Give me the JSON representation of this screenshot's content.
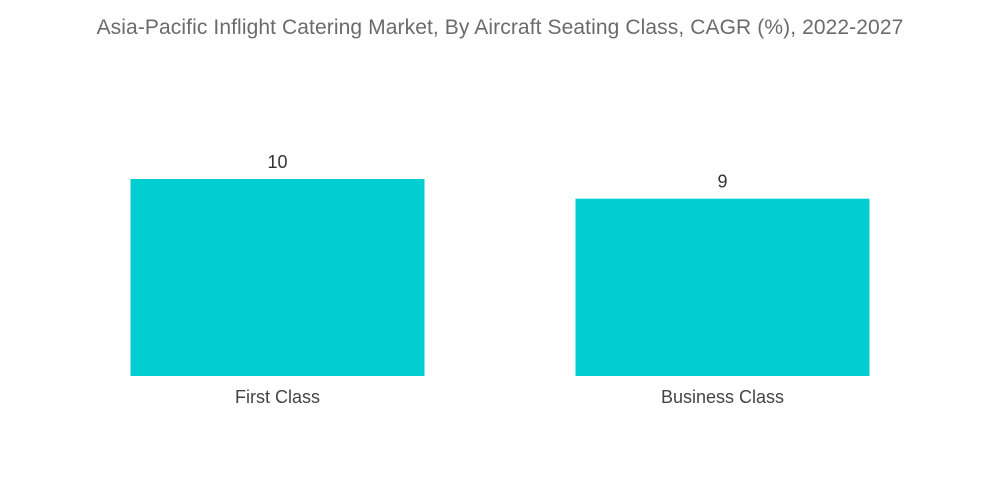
{
  "chart_data": {
    "type": "bar",
    "title": "Asia-Pacific Inflight Catering Market, By Aircraft Seating Class, CAGR (%), 2022-2027",
    "categories": [
      "First Class",
      "Business Class"
    ],
    "values": [
      10,
      9
    ],
    "data_labels": [
      "10",
      "9"
    ],
    "xlabel": "",
    "ylabel": "",
    "ylim": [
      0,
      10
    ],
    "grid": false,
    "legend": "none",
    "bar_color": "#00CED1"
  }
}
